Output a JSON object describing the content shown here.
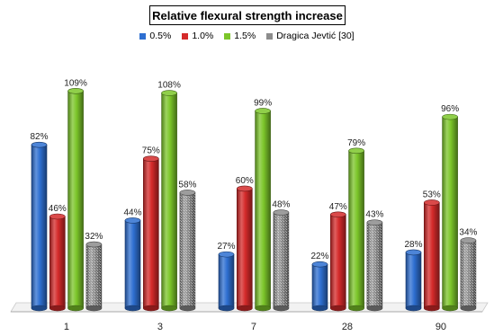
{
  "chart_data": {
    "type": "bar",
    "title": "Relative flexural strength increase",
    "categories": [
      "1",
      "3",
      "7",
      "28",
      "90"
    ],
    "series": [
      {
        "name": "0.5%",
        "values": [
          82,
          44,
          27,
          22,
          28
        ],
        "labels": [
          "82%",
          "44%",
          "27%",
          "22%",
          "28%"
        ],
        "color": "#2e6fd1"
      },
      {
        "name": "1.0%",
        "values": [
          46,
          75,
          60,
          47,
          53
        ],
        "labels": [
          "46%",
          "75%",
          "60%",
          "47%",
          "53%"
        ],
        "color": "#d42a2a"
      },
      {
        "name": "1.5%",
        "values": [
          109,
          108,
          99,
          79,
          96
        ],
        "labels": [
          "109%",
          "108%",
          "99%",
          "79%",
          "96%"
        ],
        "color": "#7cc62a"
      },
      {
        "name": "Dragica Jevtić [30]",
        "values": [
          32,
          58,
          48,
          43,
          34
        ],
        "labels": [
          "32%",
          "58%",
          "48%",
          "43%",
          "34%"
        ],
        "color": "#8c8c8c"
      }
    ],
    "xlabel": "",
    "ylabel": "",
    "ylim": [
      0,
      115
    ],
    "grid": false,
    "legend_position": "top-center"
  }
}
